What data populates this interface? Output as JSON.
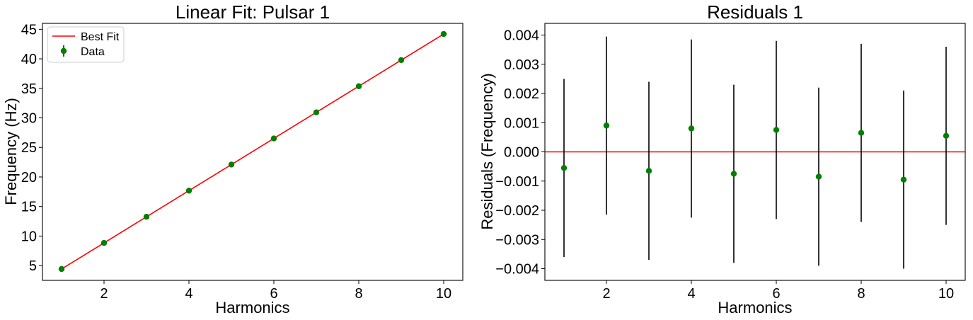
{
  "chart_data": [
    {
      "type": "line",
      "title": "Linear Fit: Pulsar 1",
      "xlabel": "Harmonics",
      "ylabel": "Frequency (Hz)",
      "xlim": [
        0.55,
        10.45
      ],
      "ylim": [
        2.5,
        46.0
      ],
      "xticks": [
        2,
        4,
        6,
        8,
        10
      ],
      "yticks": [
        5,
        10,
        15,
        20,
        25,
        30,
        35,
        40,
        45
      ],
      "legend": {
        "placement": "top-left",
        "entries": [
          "Best Fit",
          "Data"
        ]
      },
      "fit_line": {
        "name": "Best Fit",
        "color": "#ff0000",
        "x": [
          1,
          10
        ],
        "y": [
          4.42,
          44.2
        ]
      },
      "points": {
        "name": "Data",
        "color": "#008000",
        "x": [
          1,
          2,
          3,
          4,
          5,
          6,
          7,
          8,
          9,
          10
        ],
        "y": [
          4.42,
          8.84,
          13.26,
          17.68,
          22.1,
          26.52,
          30.94,
          35.36,
          39.78,
          44.2
        ]
      }
    },
    {
      "type": "scatter",
      "title": "Residuals 1",
      "xlabel": "Harmonics",
      "ylabel": "Residuals (Frequency)",
      "xlim": [
        0.55,
        10.45
      ],
      "ylim": [
        -0.0044,
        0.0044
      ],
      "xticks": [
        2,
        4,
        6,
        8,
        10
      ],
      "yticks": [
        -0.004,
        -0.003,
        -0.002,
        -0.001,
        0.0,
        0.001,
        0.002,
        0.003,
        0.004
      ],
      "ytick_labels": [
        "−0.004",
        "−0.003",
        "−0.002",
        "−0.001",
        "0.000",
        "0.001",
        "0.002",
        "0.003",
        "0.004"
      ],
      "zero_line": {
        "y": 0,
        "color": "#ff0000"
      },
      "points": {
        "color": "#008000",
        "errorbar_color": "#000000",
        "x": [
          1,
          2,
          3,
          4,
          5,
          6,
          7,
          8,
          9,
          10
        ],
        "y": [
          -0.00055,
          0.0009,
          -0.00065,
          0.0008,
          -0.00075,
          0.00075,
          -0.00085,
          0.00065,
          -0.00095,
          0.00055
        ],
        "yerr": [
          0.00305,
          0.00305,
          0.00305,
          0.00305,
          0.00305,
          0.00305,
          0.00305,
          0.00305,
          0.00305,
          0.00305
        ]
      }
    }
  ]
}
